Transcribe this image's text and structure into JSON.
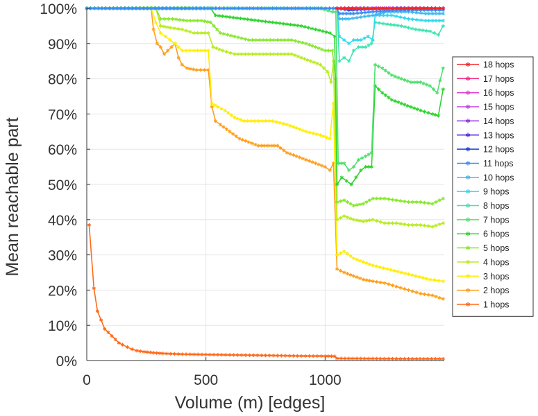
{
  "chart_data": {
    "type": "line",
    "title": "",
    "xlabel": "Volume (m) [edges]",
    "ylabel": "Mean reachable part",
    "xlim": [
      0,
      1500
    ],
    "ylim": [
      0,
      100
    ],
    "x_ticks": [
      0,
      500,
      1000
    ],
    "x_tick_labels": [
      "0",
      "500",
      "1000"
    ],
    "y_ticks": [
      0,
      10,
      20,
      30,
      40,
      50,
      60,
      70,
      80,
      90,
      100
    ],
    "y_tick_labels": [
      "0%",
      "10%",
      "20%",
      "30%",
      "40%",
      "50%",
      "60%",
      "70%",
      "80%",
      "90%",
      "100%"
    ],
    "grid": true,
    "legend_position": "right",
    "legend": [
      "18 hops",
      "17 hops",
      "16 hops",
      "15 hops",
      "14 hops",
      "13 hops",
      "12 hops",
      "11 hops",
      "10 hops",
      "9 hops",
      "8 hops",
      "7 hops",
      "6 hops",
      "5 hops",
      "4 hops",
      "3 hops",
      "2 hops",
      "1 hops"
    ],
    "series": [
      {
        "name": "1 hops",
        "color": "#ff6a1a",
        "points": [
          [
            10,
            38.5
          ],
          [
            30,
            20.5
          ],
          [
            45,
            14
          ],
          [
            60,
            11.5
          ],
          [
            75,
            9
          ],
          [
            90,
            8
          ],
          [
            105,
            7
          ],
          [
            120,
            6
          ],
          [
            135,
            5
          ],
          [
            150,
            4.5
          ],
          [
            170,
            3.8
          ],
          [
            190,
            3.2
          ],
          [
            210,
            2.8
          ],
          [
            240,
            2.5
          ],
          [
            280,
            2.2
          ],
          [
            320,
            2.0
          ],
          [
            400,
            1.8
          ],
          [
            500,
            1.7
          ],
          [
            600,
            1.6
          ],
          [
            700,
            1.5
          ],
          [
            800,
            1.4
          ],
          [
            900,
            1.3
          ],
          [
            1000,
            1.25
          ],
          [
            1040,
            1.2
          ],
          [
            1050,
            0.6
          ],
          [
            1200,
            0.55
          ],
          [
            1350,
            0.5
          ],
          [
            1495,
            0.5
          ]
        ]
      },
      {
        "name": "2 hops",
        "color": "#ff9f1a",
        "points": [
          [
            0,
            100
          ],
          [
            270,
            100
          ],
          [
            280,
            94
          ],
          [
            295,
            90
          ],
          [
            310,
            89
          ],
          [
            325,
            87
          ],
          [
            340,
            88
          ],
          [
            355,
            89
          ],
          [
            370,
            90
          ],
          [
            385,
            86
          ],
          [
            400,
            84
          ],
          [
            420,
            83
          ],
          [
            460,
            82.5
          ],
          [
            510,
            82.5
          ],
          [
            525,
            72
          ],
          [
            540,
            68
          ],
          [
            560,
            67
          ],
          [
            600,
            65
          ],
          [
            640,
            63
          ],
          [
            680,
            62
          ],
          [
            720,
            61
          ],
          [
            760,
            61
          ],
          [
            800,
            61
          ],
          [
            840,
            59
          ],
          [
            880,
            58
          ],
          [
            920,
            57
          ],
          [
            960,
            56
          ],
          [
            1000,
            55
          ],
          [
            1020,
            54
          ],
          [
            1035,
            56
          ],
          [
            1050,
            26
          ],
          [
            1080,
            25
          ],
          [
            1120,
            24
          ],
          [
            1160,
            23
          ],
          [
            1200,
            22.5
          ],
          [
            1250,
            22
          ],
          [
            1300,
            21
          ],
          [
            1350,
            20
          ],
          [
            1400,
            19
          ],
          [
            1450,
            18.5
          ],
          [
            1495,
            17.5
          ]
        ]
      },
      {
        "name": "3 hops",
        "color": "#ffee00",
        "points": [
          [
            0,
            100
          ],
          [
            270,
            100
          ],
          [
            290,
            96
          ],
          [
            310,
            93
          ],
          [
            330,
            92
          ],
          [
            350,
            91
          ],
          [
            370,
            90
          ],
          [
            385,
            89
          ],
          [
            400,
            88
          ],
          [
            450,
            88
          ],
          [
            510,
            88
          ],
          [
            525,
            73
          ],
          [
            550,
            72
          ],
          [
            580,
            71
          ],
          [
            620,
            69
          ],
          [
            660,
            68
          ],
          [
            720,
            68
          ],
          [
            780,
            68
          ],
          [
            840,
            67
          ],
          [
            880,
            66
          ],
          [
            920,
            65
          ],
          [
            980,
            64
          ],
          [
            1020,
            63
          ],
          [
            1035,
            73
          ],
          [
            1050,
            30
          ],
          [
            1080,
            31
          ],
          [
            1120,
            29
          ],
          [
            1160,
            28
          ],
          [
            1200,
            27
          ],
          [
            1260,
            26
          ],
          [
            1320,
            25
          ],
          [
            1380,
            24
          ],
          [
            1440,
            23
          ],
          [
            1495,
            22.5
          ]
        ]
      },
      {
        "name": "4 hops",
        "color": "#b8ec20",
        "points": [
          [
            0,
            100
          ],
          [
            290,
            100
          ],
          [
            310,
            95
          ],
          [
            350,
            94.5
          ],
          [
            400,
            94
          ],
          [
            450,
            93
          ],
          [
            510,
            93
          ],
          [
            530,
            89
          ],
          [
            570,
            88
          ],
          [
            620,
            87
          ],
          [
            680,
            87
          ],
          [
            740,
            87
          ],
          [
            800,
            87
          ],
          [
            860,
            87
          ],
          [
            900,
            86
          ],
          [
            940,
            85
          ],
          [
            980,
            84
          ],
          [
            1010,
            82
          ],
          [
            1025,
            79
          ],
          [
            1035,
            85
          ],
          [
            1050,
            40
          ],
          [
            1080,
            41
          ],
          [
            1120,
            40
          ],
          [
            1160,
            39.5
          ],
          [
            1200,
            40
          ],
          [
            1250,
            39
          ],
          [
            1300,
            39
          ],
          [
            1350,
            38.5
          ],
          [
            1400,
            38.5
          ],
          [
            1450,
            38
          ],
          [
            1495,
            39
          ]
        ]
      },
      {
        "name": "5 hops",
        "color": "#88e830",
        "points": [
          [
            0,
            100
          ],
          [
            290,
            100
          ],
          [
            310,
            97
          ],
          [
            360,
            97
          ],
          [
            420,
            96.5
          ],
          [
            480,
            96.5
          ],
          [
            520,
            96
          ],
          [
            560,
            93
          ],
          [
            620,
            92
          ],
          [
            680,
            91
          ],
          [
            740,
            91
          ],
          [
            800,
            91
          ],
          [
            860,
            91
          ],
          [
            920,
            90
          ],
          [
            960,
            89
          ],
          [
            1000,
            88
          ],
          [
            1030,
            88
          ],
          [
            1045,
            80
          ],
          [
            1050,
            45
          ],
          [
            1080,
            45.5
          ],
          [
            1120,
            44
          ],
          [
            1160,
            44.5
          ],
          [
            1200,
            46
          ],
          [
            1250,
            46
          ],
          [
            1300,
            45.5
          ],
          [
            1350,
            45
          ],
          [
            1400,
            45
          ],
          [
            1450,
            44.5
          ],
          [
            1495,
            46
          ]
        ]
      },
      {
        "name": "6 hops",
        "color": "#2ed42e",
        "points": [
          [
            0,
            100
          ],
          [
            520,
            100
          ],
          [
            540,
            98
          ],
          [
            600,
            97.5
          ],
          [
            660,
            97
          ],
          [
            720,
            96.5
          ],
          [
            780,
            96
          ],
          [
            840,
            95.5
          ],
          [
            900,
            95
          ],
          [
            960,
            94
          ],
          [
            1020,
            93
          ],
          [
            1040,
            92
          ],
          [
            1050,
            50
          ],
          [
            1070,
            52
          ],
          [
            1090,
            51
          ],
          [
            1110,
            50
          ],
          [
            1130,
            52
          ],
          [
            1150,
            54
          ],
          [
            1170,
            55
          ],
          [
            1195,
            55
          ],
          [
            1210,
            78
          ],
          [
            1240,
            76
          ],
          [
            1280,
            74
          ],
          [
            1320,
            73
          ],
          [
            1360,
            72
          ],
          [
            1400,
            71
          ],
          [
            1450,
            70
          ],
          [
            1475,
            69.5
          ],
          [
            1495,
            77
          ]
        ]
      },
      {
        "name": "7 hops",
        "color": "#50e070",
        "points": [
          [
            0,
            100
          ],
          [
            980,
            100
          ],
          [
            1030,
            99
          ],
          [
            1045,
            99
          ],
          [
            1055,
            56
          ],
          [
            1080,
            56
          ],
          [
            1100,
            54
          ],
          [
            1120,
            55
          ],
          [
            1140,
            57
          ],
          [
            1170,
            58
          ],
          [
            1195,
            59
          ],
          [
            1210,
            84
          ],
          [
            1240,
            83
          ],
          [
            1280,
            81
          ],
          [
            1320,
            80
          ],
          [
            1360,
            79
          ],
          [
            1400,
            79
          ],
          [
            1440,
            78
          ],
          [
            1470,
            76
          ],
          [
            1495,
            83
          ]
        ]
      },
      {
        "name": "8 hops",
        "color": "#40e4b0",
        "points": [
          [
            0,
            100
          ],
          [
            1050,
            100
          ],
          [
            1060,
            85
          ],
          [
            1080,
            86
          ],
          [
            1100,
            85
          ],
          [
            1120,
            88
          ],
          [
            1140,
            89
          ],
          [
            1170,
            89
          ],
          [
            1195,
            90
          ],
          [
            1210,
            96
          ],
          [
            1260,
            95.5
          ],
          [
            1320,
            95
          ],
          [
            1380,
            94
          ],
          [
            1440,
            93.5
          ],
          [
            1475,
            92.5
          ],
          [
            1495,
            95
          ]
        ]
      },
      {
        "name": "9 hops",
        "color": "#30d8f0",
        "points": [
          [
            0,
            100
          ],
          [
            1050,
            100
          ],
          [
            1060,
            92
          ],
          [
            1080,
            91
          ],
          [
            1100,
            90
          ],
          [
            1120,
            91
          ],
          [
            1150,
            91
          ],
          [
            1180,
            92
          ],
          [
            1200,
            91
          ],
          [
            1210,
            98
          ],
          [
            1280,
            98
          ],
          [
            1350,
            97
          ],
          [
            1420,
            96.5
          ],
          [
            1495,
            96.5
          ]
        ]
      },
      {
        "name": "10 hops",
        "color": "#40b8f0",
        "points": [
          [
            0,
            100
          ],
          [
            1050,
            100
          ],
          [
            1060,
            97
          ],
          [
            1100,
            97
          ],
          [
            1150,
            97.5
          ],
          [
            1200,
            98
          ],
          [
            1260,
            99
          ],
          [
            1350,
            99
          ],
          [
            1420,
            98.5
          ],
          [
            1495,
            98.5
          ]
        ]
      },
      {
        "name": "11 hops",
        "color": "#3a8ef0",
        "points": [
          [
            0,
            100
          ],
          [
            1050,
            100
          ],
          [
            1060,
            98.5
          ],
          [
            1120,
            98.5
          ],
          [
            1200,
            99
          ],
          [
            1300,
            99.5
          ],
          [
            1400,
            99.5
          ],
          [
            1495,
            99.5
          ]
        ]
      },
      {
        "name": "12 hops",
        "color": "#1e3cd8",
        "points": [
          [
            1050,
            100
          ],
          [
            1100,
            99.5
          ],
          [
            1200,
            99.8
          ],
          [
            1300,
            100
          ],
          [
            1495,
            100
          ]
        ]
      },
      {
        "name": "13 hops",
        "color": "#5a28d8",
        "points": [
          [
            1050,
            100
          ],
          [
            1200,
            100
          ],
          [
            1495,
            100
          ]
        ]
      },
      {
        "name": "14 hops",
        "color": "#9030e0",
        "points": [
          [
            1050,
            100
          ],
          [
            1200,
            100
          ],
          [
            1495,
            100
          ]
        ]
      },
      {
        "name": "15 hops",
        "color": "#c040e8",
        "points": [
          [
            1050,
            100
          ],
          [
            1200,
            100
          ],
          [
            1495,
            100
          ]
        ]
      },
      {
        "name": "16 hops",
        "color": "#e040d0",
        "points": [
          [
            1050,
            100
          ],
          [
            1495,
            100
          ]
        ]
      },
      {
        "name": "17 hops",
        "color": "#f02a80",
        "points": [
          [
            1050,
            100
          ],
          [
            1495,
            100
          ]
        ]
      },
      {
        "name": "18 hops",
        "color": "#f02828",
        "points": [
          [
            1050,
            100
          ],
          [
            1495,
            100
          ]
        ]
      }
    ]
  }
}
